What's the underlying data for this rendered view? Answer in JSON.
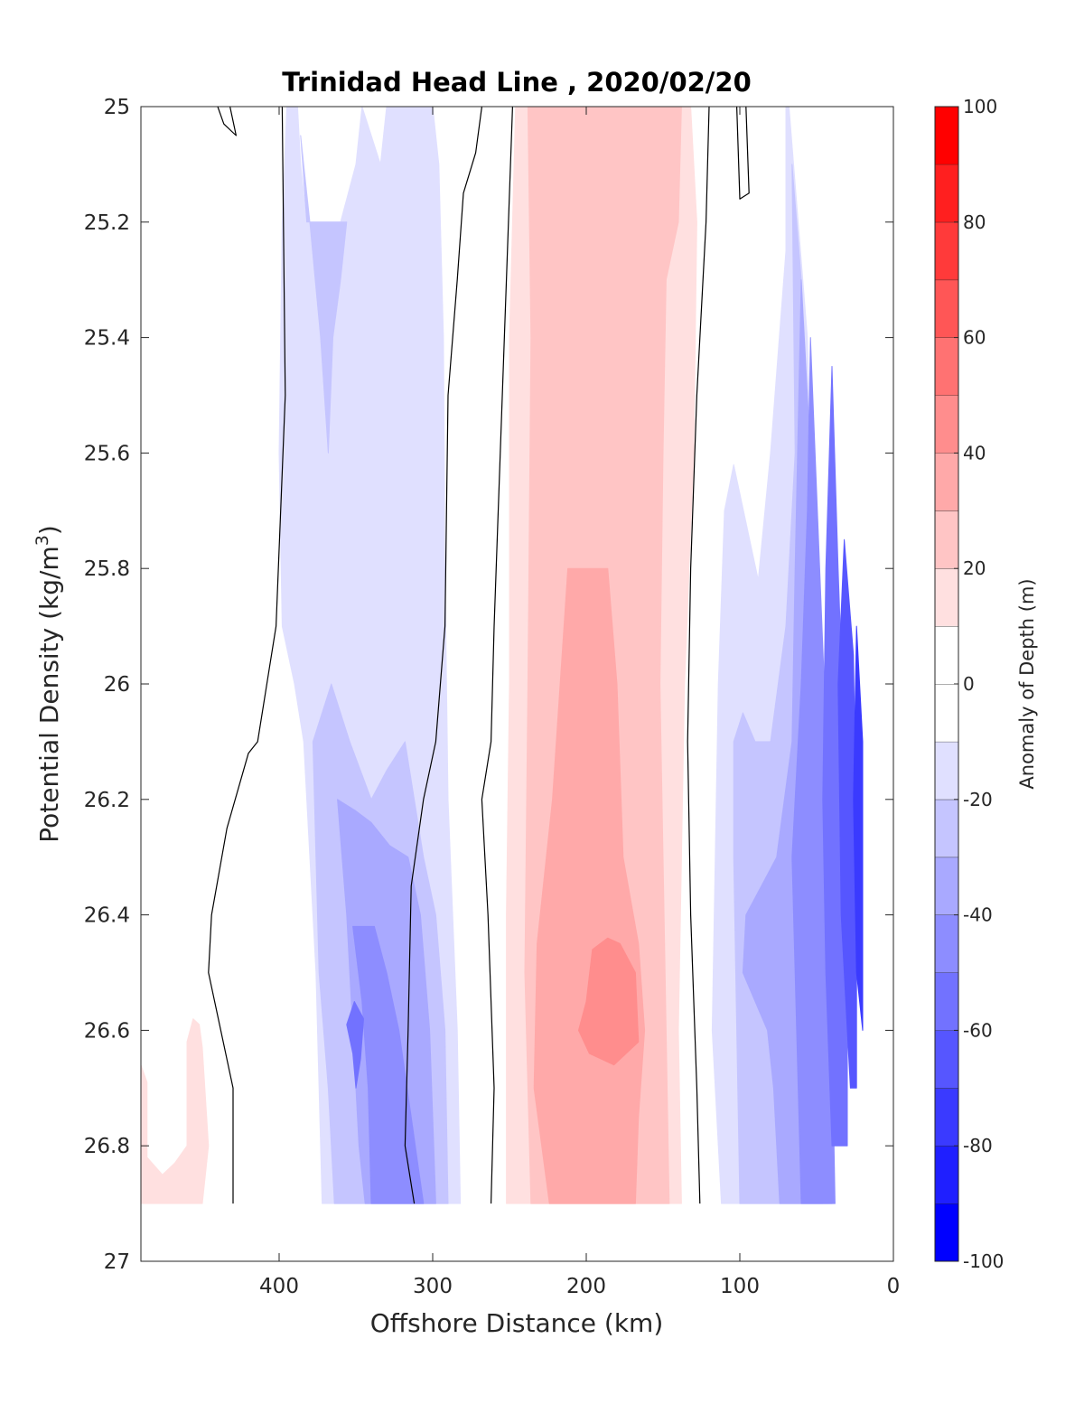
{
  "chart_data": {
    "type": "heatmap",
    "title": "Trinidad Head Line , 2020/02/20",
    "xlabel": "Offshore Distance (km)",
    "ylabel": "Potential Density (kg/m",
    "ylabel_sup": "3",
    "ylabel_close": ")",
    "xlim": [
      490,
      0
    ],
    "ylim": [
      25,
      27
    ],
    "y_reversed": true,
    "x_reversed": true,
    "xticks": [
      400,
      300,
      200,
      100,
      0
    ],
    "yticks": [
      25,
      25.2,
      25.4,
      25.6,
      25.8,
      26,
      26.2,
      26.4,
      26.6,
      26.8,
      27
    ],
    "ytick_labels": [
      "25",
      "25.2",
      "25.4",
      "25.6",
      "25.8",
      "26",
      "26.2",
      "26.4",
      "26.6",
      "26.8",
      "27"
    ],
    "data_extent": {
      "x": [
        490,
        20
      ],
      "y": [
        25,
        26.9
      ]
    },
    "colorbar": {
      "label": "Anomaly of Depth (m)",
      "range": [
        -100,
        100
      ],
      "step": 10,
      "ticks": [
        100,
        80,
        60,
        40,
        20,
        0,
        -20,
        -40,
        -60,
        -80,
        -100
      ],
      "colors": {
        "neg": [
          "#e0e0ff",
          "#c5c5ff",
          "#a9a9ff",
          "#8d8dff",
          "#7272ff",
          "#5656ff",
          "#3a3aff",
          "#1f1fff",
          "#0000ff"
        ],
        "zero": "#ffffff",
        "pos": [
          "#ffe0e0",
          "#ffc5c5",
          "#ffa9a9",
          "#ff8d8d",
          "#ff7272",
          "#ff5656",
          "#ff3a3a",
          "#ff1f1f",
          "#ff0000"
        ]
      }
    },
    "bands": [
      {
        "name": "offshore-positive-patch",
        "level": 10,
        "color": "#ffe0e0",
        "polygon": [
          [
            490,
            26.66
          ],
          [
            486,
            26.69
          ],
          [
            486,
            26.82
          ],
          [
            476,
            26.85
          ],
          [
            468,
            26.83
          ],
          [
            460,
            26.8
          ],
          [
            460,
            26.62
          ],
          [
            456,
            26.58
          ],
          [
            452,
            26.59
          ],
          [
            450,
            26.63
          ],
          [
            446,
            26.8
          ],
          [
            450,
            26.9
          ],
          [
            490,
            26.9
          ]
        ]
      },
      {
        "name": "negative-lobe-west",
        "level": -10,
        "color": "#e0e0ff",
        "polygon": [
          [
            395,
            25
          ],
          [
            398,
            25.2
          ],
          [
            400,
            25.6
          ],
          [
            398,
            25.9
          ],
          [
            390,
            26
          ],
          [
            384,
            26.1
          ],
          [
            380,
            26.3
          ],
          [
            376,
            26.5
          ],
          [
            374,
            26.7
          ],
          [
            372,
            26.9
          ],
          [
            282,
            26.9
          ],
          [
            284,
            26.6
          ],
          [
            290,
            26.2
          ],
          [
            292,
            25.8
          ],
          [
            293,
            25.4
          ],
          [
            296,
            25.1
          ],
          [
            300,
            25
          ],
          [
            330,
            25
          ],
          [
            334,
            25.1
          ],
          [
            346,
            25
          ],
          [
            350,
            25.1
          ],
          [
            360,
            25.2
          ],
          [
            376,
            25.2
          ],
          [
            382,
            25.2
          ],
          [
            386,
            25.1
          ],
          [
            388,
            25
          ]
        ]
      },
      {
        "name": "negative-lobe-west-inner",
        "level": -20,
        "color": "#c5c5ff",
        "polygon": [
          [
            386,
            25.05
          ],
          [
            380,
            25.2
          ],
          [
            373,
            25.4
          ],
          [
            368,
            25.6
          ],
          [
            365,
            25.4
          ],
          [
            360,
            25.3
          ],
          [
            356,
            25.2
          ],
          [
            368,
            25.2
          ],
          [
            382,
            25.2
          ]
        ]
      },
      {
        "name": "negative-lobe-west-mid",
        "level": -20,
        "color": "#c5c5ff",
        "polygon": [
          [
            378,
            26.1
          ],
          [
            376,
            26.3
          ],
          [
            374,
            26.5
          ],
          [
            368,
            26.7
          ],
          [
            364,
            26.9
          ],
          [
            290,
            26.9
          ],
          [
            292,
            26.6
          ],
          [
            298,
            26.4
          ],
          [
            306,
            26.3
          ],
          [
            312,
            26.2
          ],
          [
            318,
            26.1
          ],
          [
            330,
            26.15
          ],
          [
            340,
            26.2
          ],
          [
            354,
            26.1
          ],
          [
            366,
            26.0
          ]
        ]
      },
      {
        "name": "negative-lobe-west-core",
        "level": -30,
        "color": "#a9a9ff",
        "polygon": [
          [
            362,
            26.2
          ],
          [
            356,
            26.4
          ],
          [
            352,
            26.6
          ],
          [
            348,
            26.8
          ],
          [
            344,
            26.9
          ],
          [
            298,
            26.9
          ],
          [
            302,
            26.6
          ],
          [
            308,
            26.4
          ],
          [
            316,
            26.3
          ],
          [
            328,
            26.28
          ],
          [
            340,
            26.24
          ],
          [
            350,
            26.22
          ]
        ]
      },
      {
        "name": "negative-lobe-west-core2",
        "level": -40,
        "color": "#8d8dff",
        "polygon": [
          [
            352,
            26.42
          ],
          [
            346,
            26.55
          ],
          [
            342,
            26.7
          ],
          [
            340,
            26.9
          ],
          [
            306,
            26.9
          ],
          [
            314,
            26.75
          ],
          [
            322,
            26.6
          ],
          [
            330,
            26.5
          ],
          [
            338,
            26.42
          ]
        ]
      },
      {
        "name": "negative-lobe-west-core3",
        "level": -50,
        "color": "#7272ff",
        "polygon": [
          [
            356,
            26.59
          ],
          [
            352,
            26.64
          ],
          [
            350,
            26.7
          ],
          [
            347,
            26.65
          ],
          [
            345,
            26.58
          ],
          [
            351,
            26.55
          ]
        ]
      },
      {
        "name": "positive-core-outer",
        "level": 10,
        "color": "#ffe0e0",
        "polygon": [
          [
            246,
            25
          ],
          [
            250,
            25.4
          ],
          [
            250,
            26
          ],
          [
            252,
            26.4
          ],
          [
            252,
            26.9
          ],
          [
            138,
            26.9
          ],
          [
            140,
            26.6
          ],
          [
            138,
            26.3
          ],
          [
            136,
            26
          ],
          [
            130,
            25.6
          ],
          [
            128,
            25.2
          ],
          [
            132,
            25
          ]
        ]
      },
      {
        "name": "positive-core-band",
        "level": 20,
        "color": "#ffc5c5",
        "polygon": [
          [
            238,
            25
          ],
          [
            236,
            25.4
          ],
          [
            238,
            26
          ],
          [
            240,
            26.5
          ],
          [
            236,
            26.9
          ],
          [
            146,
            26.9
          ],
          [
            148,
            26.6
          ],
          [
            150,
            26.3
          ],
          [
            152,
            26
          ],
          [
            150,
            25.6
          ],
          [
            148,
            25.3
          ],
          [
            140,
            25.2
          ],
          [
            138,
            25
          ]
        ]
      },
      {
        "name": "positive-core-mid",
        "level": 30,
        "color": "#ffa9a9",
        "polygon": [
          [
            212,
            25.8
          ],
          [
            222,
            26.2
          ],
          [
            232,
            26.45
          ],
          [
            234,
            26.7
          ],
          [
            224,
            26.9
          ],
          [
            168,
            26.9
          ],
          [
            166,
            26.75
          ],
          [
            162,
            26.6
          ],
          [
            166,
            26.45
          ],
          [
            176,
            26.3
          ],
          [
            180,
            26
          ],
          [
            186,
            25.8
          ]
        ]
      },
      {
        "name": "positive-core-inner",
        "level": 40,
        "color": "#ff8d8d",
        "polygon": [
          [
            196,
            26.46
          ],
          [
            200,
            26.55
          ],
          [
            205,
            26.6
          ],
          [
            198,
            26.64
          ],
          [
            182,
            26.66
          ],
          [
            166,
            26.62
          ],
          [
            168,
            26.5
          ],
          [
            178,
            26.45
          ],
          [
            186,
            26.44
          ]
        ]
      },
      {
        "name": "negative-lobe-east",
        "level": -10,
        "color": "#e0e0ff",
        "polygon": [
          [
            68,
            25
          ],
          [
            62,
            25.2
          ],
          [
            56,
            25.4
          ],
          [
            52,
            25.8
          ],
          [
            48,
            26.2
          ],
          [
            44,
            26.6
          ],
          [
            42,
            26.9
          ],
          [
            112,
            26.9
          ],
          [
            118,
            26.6
          ],
          [
            116,
            26.3
          ],
          [
            114,
            26
          ],
          [
            110,
            25.7
          ],
          [
            104,
            25.62
          ],
          [
            96,
            25.72
          ],
          [
            88,
            25.82
          ],
          [
            80,
            25.6
          ],
          [
            70,
            25.25
          ],
          [
            70,
            25
          ]
        ]
      },
      {
        "name": "negative-lobe-east-mid",
        "level": -20,
        "color": "#c5c5ff",
        "polygon": [
          [
            66,
            25.1
          ],
          [
            60,
            25.3
          ],
          [
            56,
            25.6
          ],
          [
            52,
            26
          ],
          [
            48,
            26.3
          ],
          [
            46,
            26.7
          ],
          [
            46,
            26.9
          ],
          [
            100,
            26.9
          ],
          [
            102,
            26.6
          ],
          [
            104,
            26.3
          ],
          [
            104,
            26.1
          ],
          [
            98,
            26.05
          ],
          [
            90,
            26.1
          ],
          [
            80,
            26.1
          ],
          [
            70,
            25.9
          ],
          [
            64,
            25.6
          ]
        ]
      },
      {
        "name": "negative-lobe-east-core",
        "level": -30,
        "color": "#a9a9ff",
        "polygon": [
          [
            60,
            25.3
          ],
          [
            54,
            25.6
          ],
          [
            50,
            26
          ],
          [
            46,
            26.3
          ],
          [
            42,
            26.6
          ],
          [
            40,
            26.9
          ],
          [
            74,
            26.9
          ],
          [
            78,
            26.7
          ],
          [
            82,
            26.6
          ],
          [
            90,
            26.55
          ],
          [
            98,
            26.5
          ],
          [
            96,
            26.4
          ],
          [
            86,
            26.35
          ],
          [
            76,
            26.3
          ],
          [
            66,
            26.1
          ],
          [
            64,
            25.8
          ]
        ]
      },
      {
        "name": "negative-lobe-east-deep",
        "level": -40,
        "color": "#8d8dff",
        "polygon": [
          [
            54,
            25.4
          ],
          [
            48,
            25.8
          ],
          [
            42,
            26.2
          ],
          [
            40,
            26.6
          ],
          [
            38,
            26.9
          ],
          [
            60,
            26.9
          ],
          [
            62,
            26.7
          ],
          [
            64,
            26.5
          ],
          [
            66,
            26.3
          ],
          [
            60,
            26.0
          ],
          [
            56,
            25.7
          ]
        ]
      },
      {
        "name": "coast-negative-strong",
        "level": -50,
        "color": "#7272ff",
        "polygon": [
          [
            40,
            25.45
          ],
          [
            36,
            25.8
          ],
          [
            32,
            26.1
          ],
          [
            30,
            26.5
          ],
          [
            30,
            26.8
          ],
          [
            40,
            26.8
          ],
          [
            44,
            26.5
          ],
          [
            46,
            26.2
          ],
          [
            44,
            25.8
          ]
        ]
      },
      {
        "name": "coast-negative-stronger",
        "level": -60,
        "color": "#5656ff",
        "polygon": [
          [
            32,
            25.75
          ],
          [
            26,
            25.95
          ],
          [
            24,
            26.3
          ],
          [
            24,
            26.7
          ],
          [
            28,
            26.7
          ],
          [
            34,
            26.4
          ],
          [
            36,
            26.0
          ]
        ]
      },
      {
        "name": "coast-negative-strongest",
        "level": -70,
        "color": "#3a3aff",
        "polygon": [
          [
            24,
            25.9
          ],
          [
            20,
            26.1
          ],
          [
            20,
            26.6
          ],
          [
            24,
            26.5
          ],
          [
            26,
            26.2
          ]
        ]
      }
    ],
    "zero_contours": [
      [
        [
          440,
          25
        ],
        [
          436,
          25.03
        ],
        [
          428,
          25.05
        ],
        [
          432,
          25
        ]
      ],
      [
        [
          398,
          25
        ],
        [
          396,
          25.5
        ],
        [
          402,
          25.9
        ],
        [
          414,
          26.1
        ],
        [
          420,
          26.12
        ],
        [
          434,
          26.25
        ],
        [
          444,
          26.4
        ],
        [
          446,
          26.5
        ],
        [
          438,
          26.6
        ],
        [
          430,
          26.7
        ],
        [
          430,
          26.9
        ]
      ],
      [
        [
          248,
          25
        ],
        [
          252,
          25.3
        ],
        [
          256,
          25.6
        ],
        [
          260,
          25.9
        ],
        [
          262,
          26.1
        ],
        [
          268,
          26.2
        ],
        [
          264,
          26.4
        ],
        [
          260,
          26.7
        ],
        [
          262,
          26.9
        ]
      ],
      [
        [
          268,
          25
        ],
        [
          272,
          25.08
        ],
        [
          280,
          25.15
        ],
        [
          284,
          25.3
        ],
        [
          290,
          25.5
        ],
        [
          292,
          25.9
        ],
        [
          298,
          26.1
        ],
        [
          306,
          26.2
        ],
        [
          314,
          26.35
        ],
        [
          316,
          26.6
        ],
        [
          318,
          26.8
        ],
        [
          312,
          26.9
        ]
      ],
      [
        [
          120,
          25
        ],
        [
          122,
          25.2
        ],
        [
          128,
          25.5
        ],
        [
          132,
          25.8
        ],
        [
          134,
          26.1
        ],
        [
          132,
          26.4
        ],
        [
          128,
          26.7
        ],
        [
          126,
          26.9
        ]
      ],
      [
        [
          96,
          25
        ],
        [
          94,
          25.15
        ],
        [
          100,
          25.16
        ],
        [
          102,
          25
        ]
      ]
    ]
  }
}
